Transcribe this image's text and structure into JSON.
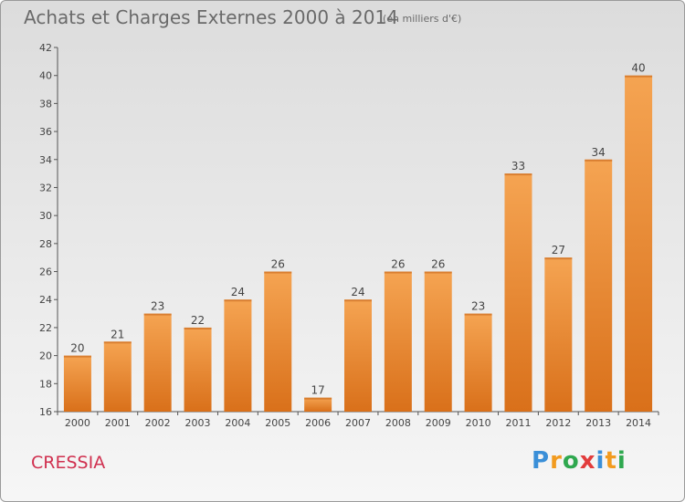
{
  "chart_data": {
    "type": "bar",
    "title": "Achats et Charges Externes 2000 à 2014",
    "subtitle": "(en milliers d'€)",
    "categories": [
      "2000",
      "2001",
      "2002",
      "2003",
      "2004",
      "2005",
      "2006",
      "2007",
      "2008",
      "2009",
      "2010",
      "2011",
      "2012",
      "2013",
      "2014"
    ],
    "values": [
      20,
      21,
      23,
      22,
      24,
      26,
      17,
      24,
      26,
      26,
      23,
      33,
      27,
      34,
      40
    ],
    "ylim": [
      16,
      42
    ],
    "yticks": [
      16,
      18,
      20,
      22,
      24,
      26,
      28,
      30,
      32,
      34,
      36,
      38,
      40,
      42
    ],
    "grid": false,
    "bar_color": "#e8822a"
  },
  "footer": {
    "place": "CRESSIA",
    "logo": [
      "P",
      "r",
      "o",
      "x",
      "i",
      "t",
      "i"
    ],
    "logo_colors": [
      "#3a8fd8",
      "#f29b1f",
      "#2fa84f",
      "#e23c3c",
      "#3a8fd8",
      "#f29b1f",
      "#2fa84f"
    ]
  },
  "colors": {
    "title": "#6a6a6a",
    "place": "#d0304f"
  }
}
